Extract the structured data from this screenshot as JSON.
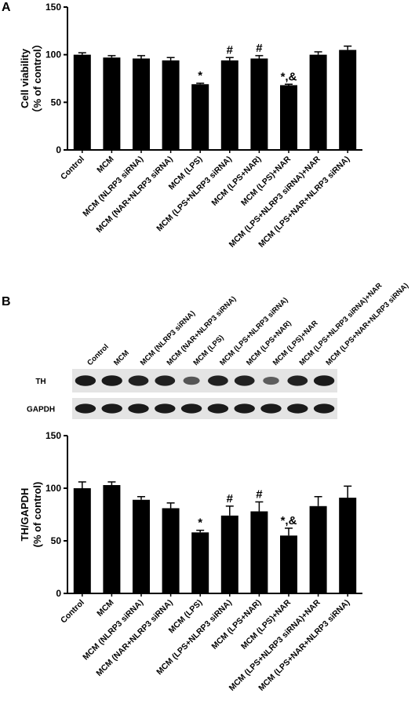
{
  "panel_a": {
    "letter": "A"
  },
  "panel_b": {
    "letter": "B"
  },
  "blot": {
    "lane_labels": [
      "Control",
      "MCM",
      "MCM (NLRP3 siRNA)",
      "MCM (NAR+NLRP3 siRNA)",
      "MCM (LPS)",
      "MCM (LPS+NLRP3 siRNA)",
      "MCM (LPS+NAR)",
      "MCM (LPS)+NAR",
      "MCM (LPS+NLRP3 siRNA)+NAR",
      "MCM (LPS+NAR+NLRP3 siRNA)"
    ],
    "rows": [
      {
        "label": "TH",
        "intensity": [
          1.0,
          1.0,
          0.95,
          0.95,
          0.55,
          0.95,
          0.95,
          0.5,
          0.95,
          1.0
        ]
      },
      {
        "label": "GAPDH",
        "intensity": [
          1.0,
          1.0,
          1.0,
          1.0,
          1.0,
          1.0,
          1.0,
          1.0,
          1.0,
          1.0
        ]
      }
    ],
    "colors": {
      "background": "#e4e4e4",
      "band": "#1a1a1a"
    }
  },
  "chart_data": [
    {
      "type": "bar",
      "panel": "A",
      "title": "",
      "xlabel": "",
      "ylabel": "Cell viability",
      "ylabel_line2": "（% of control）",
      "ylim": [
        0,
        150
      ],
      "yticks": [
        "0",
        "50",
        "100",
        "150"
      ],
      "categories": [
        "Control",
        "MCM",
        "MCM (NLRP3 siRNA)",
        "MCM (NAR+NLRP3 siRNA)",
        "MCM (LPS)",
        "MCM (LPS+NLRP3 siRNA)",
        "MCM (LPS+NAR)",
        "MCM (LPS)+NAR",
        "MCM (LPS+NLRP3 siRNA)+NAR",
        "MCM (LPS+NAR+NLRP3 siRNA)"
      ],
      "values": [
        100,
        97,
        96,
        94,
        69,
        94,
        96,
        68,
        100,
        105
      ],
      "errors": [
        2,
        2,
        3,
        3,
        1,
        3,
        3,
        1,
        3,
        4
      ],
      "annotations": [
        "",
        "",
        "",
        "",
        "*",
        "#",
        "#",
        "*,&",
        "",
        ""
      ],
      "grid": false,
      "bar_color": "#000000"
    },
    {
      "type": "bar",
      "panel": "B",
      "title": "",
      "xlabel": "",
      "ylabel": "TH/GAPDH",
      "ylabel_line2": "(% of control)",
      "ylim": [
        0,
        150
      ],
      "yticks": [
        "0",
        "50",
        "100",
        "150"
      ],
      "categories": [
        "Control",
        "MCM",
        "MCM (NLRP3 siRNA)",
        "MCM (NAR+NLRP3 siRNA)",
        "MCM (LPS)",
        "MCM (LPS+NLRP3 siRNA)",
        "MCM (LPS+NAR)",
        "MCM (LPS)+NAR",
        "MCM (LPS+NLRP3 siRNA)+NAR",
        "MCM (LPS+NAR+NLRP3 siRNA)"
      ],
      "values": [
        100,
        103,
        89,
        81,
        58,
        74,
        78,
        55,
        83,
        91
      ],
      "errors": [
        6,
        3,
        3,
        5,
        2,
        9,
        9,
        7,
        9,
        11
      ],
      "annotations": [
        "",
        "",
        "",
        "",
        "*",
        "#",
        "#",
        "*,&",
        "",
        ""
      ],
      "grid": false,
      "bar_color": "#000000"
    }
  ]
}
